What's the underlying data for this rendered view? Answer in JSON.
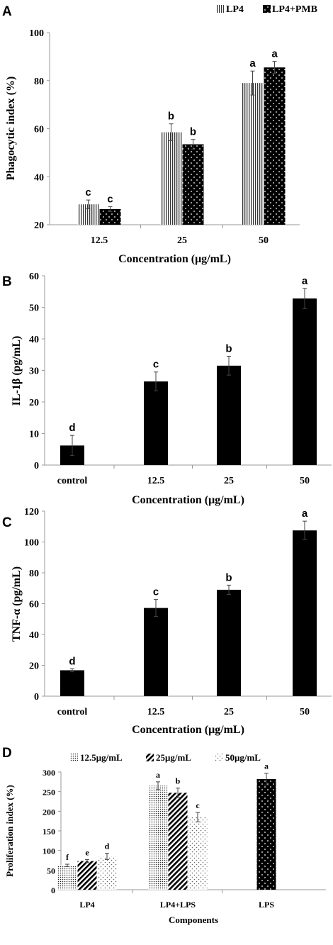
{
  "chart_data": [
    {
      "panel": "A",
      "type": "bar",
      "categories": [
        "12.5",
        "25",
        "50"
      ],
      "series": [
        {
          "name": "LP4",
          "values": [
            28.5,
            58.5,
            79
          ],
          "errors": [
            1.8,
            3.5,
            5
          ],
          "labels": [
            "c",
            "b",
            "a"
          ],
          "pattern": "vlines"
        },
        {
          "name": "LP4+PMB",
          "values": [
            26.5,
            53.5,
            85.5
          ],
          "errors": [
            1,
            2,
            2.5
          ],
          "labels": [
            "c",
            "b",
            "a"
          ],
          "pattern": "dots"
        }
      ],
      "xlabel": "Concentration (μg/mL)",
      "ylabel": "Phagocytic index (%)",
      "ylim": [
        20,
        100
      ],
      "yticks": [
        20,
        40,
        60,
        80,
        100
      ],
      "grid": false,
      "legend": "top-right"
    },
    {
      "panel": "B",
      "type": "bar",
      "categories": [
        "control",
        "12.5",
        "25",
        "50"
      ],
      "series": [
        {
          "values": [
            6.2,
            26.5,
            31.5,
            52.8
          ],
          "errors": [
            3.2,
            3,
            3,
            3.2
          ],
          "labels": [
            "d",
            "c",
            "b",
            "a"
          ],
          "pattern": "solid"
        }
      ],
      "xlabel": "Concentration (μg/mL)",
      "ylabel": "IL-1β (pg/mL)",
      "ylim": [
        0,
        60
      ],
      "yticks": [
        0,
        10,
        20,
        30,
        40,
        50,
        60
      ],
      "grid": false
    },
    {
      "panel": "C",
      "type": "bar",
      "categories": [
        "control",
        "12.5",
        "25",
        "50"
      ],
      "series": [
        {
          "values": [
            16.8,
            57.2,
            69,
            107.5
          ],
          "errors": [
            1,
            5.5,
            3,
            6
          ],
          "labels": [
            "d",
            "c",
            "b",
            "a"
          ],
          "pattern": "solid"
        }
      ],
      "xlabel": "Concentration (μg/mL)",
      "ylabel": "TNF-α (pg/mL)",
      "ylim": [
        0,
        120
      ],
      "yticks": [
        0,
        20,
        40,
        60,
        80,
        100,
        120
      ],
      "grid": false
    },
    {
      "panel": "D",
      "type": "bar",
      "categories": [
        "LP4",
        "LP4+LPS",
        "LPS"
      ],
      "series": [
        {
          "name": "12.5μg/mL",
          "values": [
            62,
            265,
            282
          ],
          "errors": [
            3,
            10,
            15
          ],
          "labels": [
            "f",
            "a",
            "a"
          ],
          "pattern": "finedots"
        },
        {
          "name": "25μg/mL",
          "values": [
            73,
            247,
            null
          ],
          "errors": [
            4,
            12,
            null
          ],
          "labels": [
            "e",
            "b",
            null
          ],
          "pattern": "diag"
        },
        {
          "name": "50μg/mL",
          "values": [
            85,
            185,
            null
          ],
          "errors": [
            8,
            12,
            null
          ],
          "labels": [
            "d",
            "c",
            null
          ],
          "pattern": "sparse"
        }
      ],
      "lps_pattern": "dots",
      "xlabel": "Components",
      "ylabel": "Proliferation index (%)",
      "ylim": [
        0,
        300
      ],
      "yticks": [
        0,
        50,
        100,
        150,
        200,
        250,
        300
      ],
      "grid": false,
      "legend": "top"
    }
  ]
}
